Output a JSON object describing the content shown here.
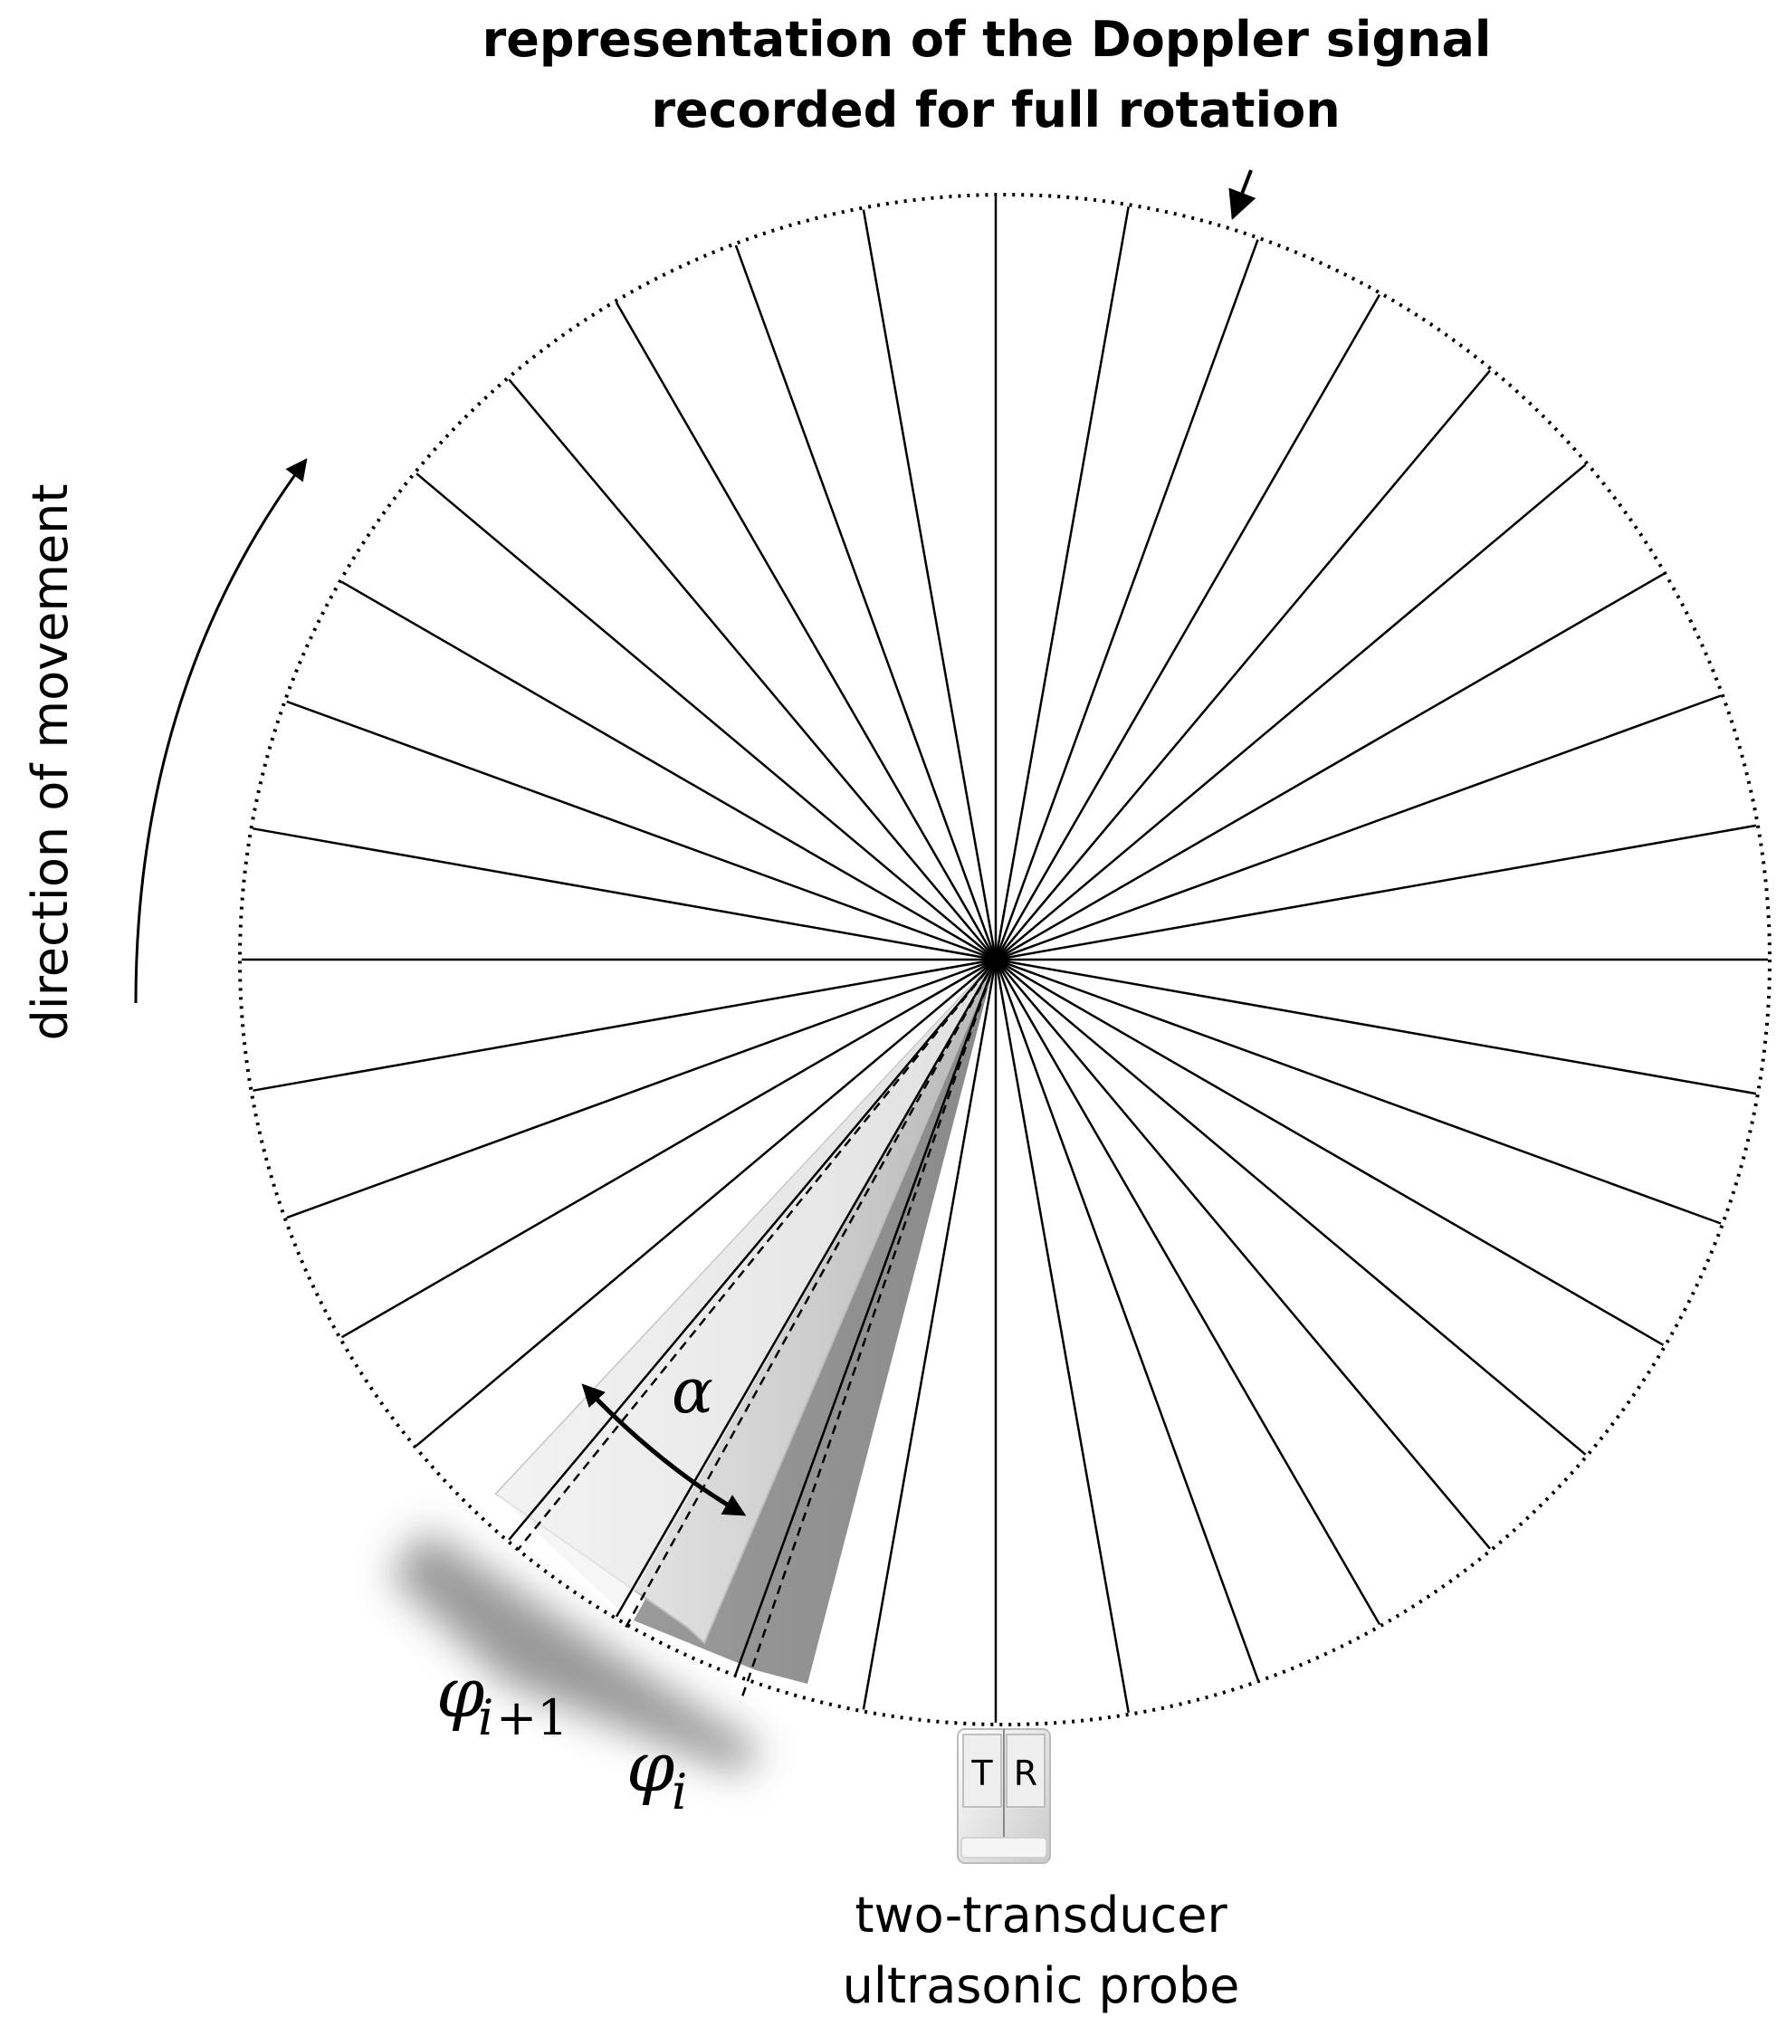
{
  "title_line1": "representation of the Doppler signal",
  "title_line2": "recorded for full rotation",
  "direction_label": "direction of movement",
  "alpha_label": "α",
  "phi_i1_symbol": "φ",
  "phi_i1_sub_i": "i",
  "phi_i1_sub_rest": "+1",
  "phi_i_symbol": "φ",
  "phi_i_sub": "i",
  "probe_T": "T",
  "probe_R": "R",
  "probe_label_line1": "two-transducer",
  "probe_label_line2": "ultrasonic probe",
  "ray_count": 36
}
